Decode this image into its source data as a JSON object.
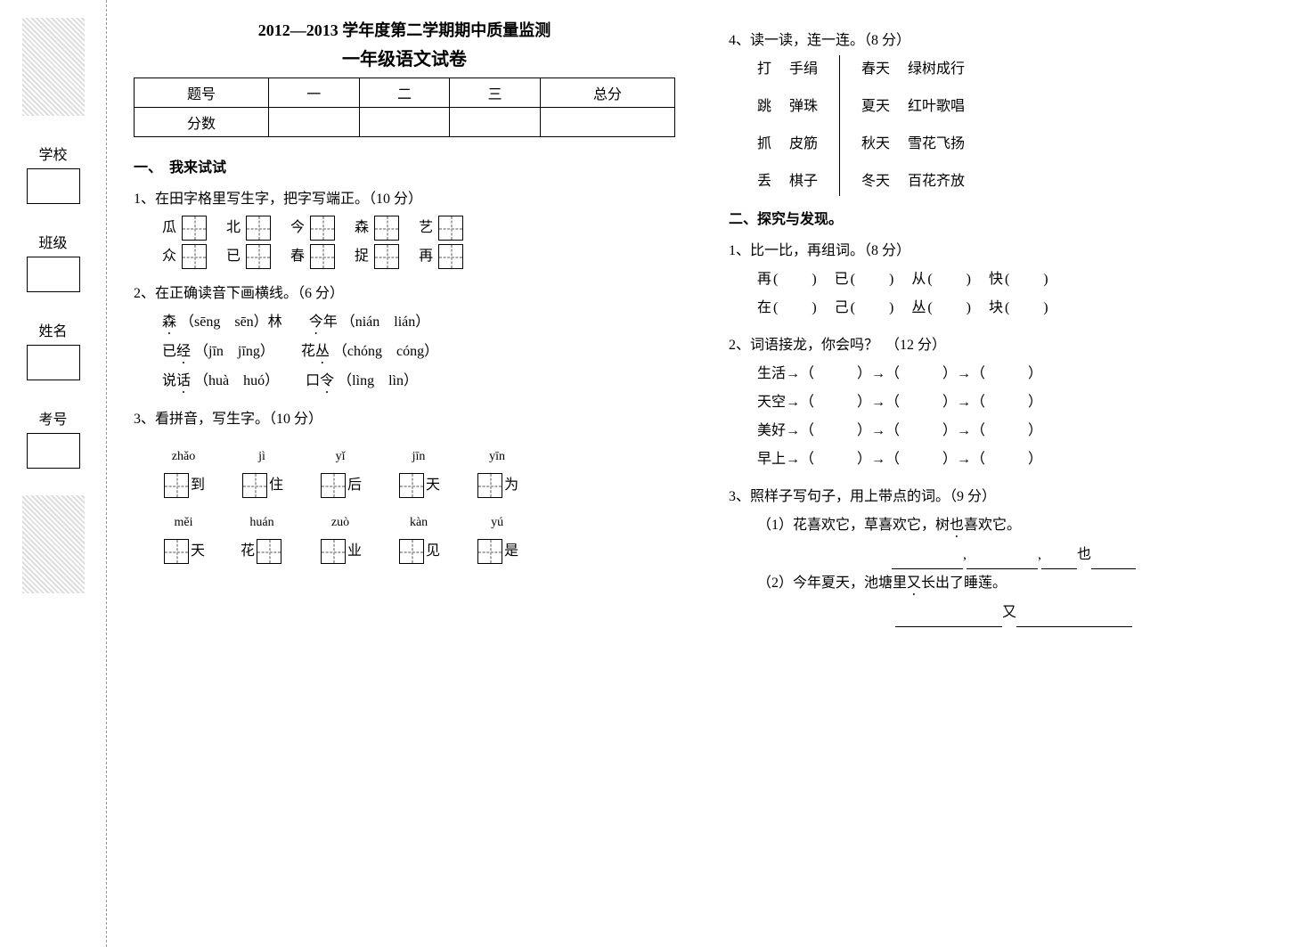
{
  "sidebar": {
    "school": "学校",
    "class": "班级",
    "name": "姓名",
    "exam_no": "考号"
  },
  "header": {
    "title": "2012—2013 学年度第二学期期中质量监测",
    "subtitle": "一年级语文试卷",
    "score_cols": [
      "题号",
      "一",
      "二",
      "三",
      "总分"
    ],
    "score_row": "分数"
  },
  "sec1": {
    "head": "一、　我来试试",
    "q1": {
      "stem": "1、在田字格里写生字，把字写端正。（10 分）",
      "row1": [
        "瓜",
        "北",
        "今",
        "森",
        "艺"
      ],
      "row2": [
        "众",
        "已",
        "春",
        "捉",
        "再"
      ]
    },
    "q2": {
      "stem": "2、在正确读音下画横线。（6 分）",
      "items": [
        {
          "w": "森",
          "p": "（sēng　sēn）林"
        },
        {
          "w": "今年",
          "p": "（nián　lián）"
        },
        {
          "w": "已",
          "dw": "经",
          "p": "（jīn　jīng）"
        },
        {
          "w": "花",
          "dw": "丛",
          "p": "（chóng　cóng）"
        },
        {
          "w": "说",
          "dw": "话",
          "p": "（huà　huó）"
        },
        {
          "w": "口",
          "dw": "令",
          "p": "（lìng　lìn）"
        }
      ]
    },
    "q3": {
      "stem": "3、看拼音，写生字。（10 分）",
      "row1": [
        {
          "py": "zhǎo",
          "ch": "到"
        },
        {
          "py": "jì",
          "ch": "住"
        },
        {
          "py": "yǐ",
          "ch": "后"
        },
        {
          "py": "jīn",
          "ch": "天"
        },
        {
          "py": "yīn",
          "ch": "为"
        }
      ],
      "row2": [
        {
          "py": "měi",
          "ch": "天",
          "pre": true
        },
        {
          "py": "huán",
          "ch": "花",
          "post": true
        },
        {
          "py": "zuò",
          "ch": "业"
        },
        {
          "py": "kàn",
          "ch": "见"
        },
        {
          "py": "yú",
          "ch": "是"
        }
      ]
    },
    "q4": {
      "stem": "4、读一读，连一连。（8 分）",
      "left": [
        {
          "a": "打",
          "b": "手绢"
        },
        {
          "a": "跳",
          "b": "弹珠"
        },
        {
          "a": "抓",
          "b": "皮筋"
        },
        {
          "a": "丢",
          "b": "棋子"
        }
      ],
      "right": [
        {
          "a": "春天",
          "b": "绿树成行"
        },
        {
          "a": "夏天",
          "b": "红叶歌唱"
        },
        {
          "a": "秋天",
          "b": "雪花飞扬"
        },
        {
          "a": "冬天",
          "b": "百花齐放"
        }
      ]
    }
  },
  "sec2": {
    "head": "二、探究与发现。",
    "q1": {
      "stem": "1、比一比，再组词。（8 分）",
      "rows": [
        [
          "再(　　)",
          "已(　　)",
          "从(　　)",
          "快(　　)"
        ],
        [
          "在(　　)",
          "己(　　)",
          "丛(　　)",
          "块(　　)"
        ]
      ]
    },
    "q2": {
      "stem": "2、词语接龙，你会吗？　（12 分）",
      "starts": [
        "生活",
        "天空",
        "美好",
        "早上"
      ],
      "chain": "→（　　　）→（　　　）→（　　　）"
    },
    "q3": {
      "stem": "3、照样子写句子，用上带点的词。（9 分）",
      "ex1": "（1）花喜欢它，草喜欢它，树",
      "ex1_dot": "也",
      "ex1_tail": "喜欢它。",
      "ex1_blank_mid": "也",
      "ex2": "（2）今年夏天，池塘里",
      "ex2_dot": "又",
      "ex2_tail": "长出了睡莲。",
      "ex2_mid": "又"
    }
  }
}
